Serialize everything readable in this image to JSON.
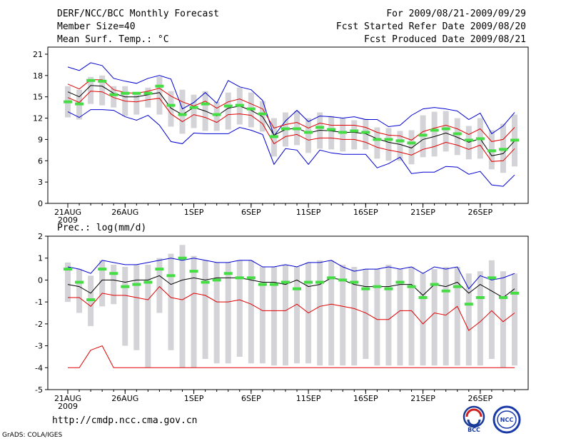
{
  "header": {
    "title": "DERF/NCC/BCC Monthly Forecast",
    "member_size": "Member Size=40",
    "variable": "Mean Surf. Temp.: °C",
    "period": "For 2009/08/21-2009/09/29",
    "fcst_started": "Fcst Started Refer Date 2009/08/20",
    "fcst_produced": "Fcst Produced Date 2009/08/21"
  },
  "footer": {
    "url": "http://cmdp.ncc.cma.gov.cn",
    "credit": "GrADS: COLA/IGES",
    "logo_bcc": "BCC",
    "logo_ncc": "NCC"
  },
  "colors": {
    "box": "#d4d4d8",
    "mean": "#000000",
    "upper": "#0000d0",
    "red": "#e00000",
    "green": "#44dd44"
  },
  "chart_data": [
    {
      "type": "line",
      "title": "Mean Surf. Temp.: °C",
      "x_tick_labels": [
        "21AUG",
        "26AUG",
        "1SEP",
        "6SEP",
        "11SEP",
        "16SEP",
        "21SEP",
        "26SEP"
      ],
      "x_tick_days": [
        1,
        6,
        12,
        17,
        22,
        27,
        32,
        37
      ],
      "x_sublabel": "2009",
      "ylim": [
        0,
        22
      ],
      "yticks": [
        "0",
        "3",
        "6",
        "9",
        "12",
        "15",
        "18",
        "21"
      ],
      "days": [
        1,
        2,
        3,
        4,
        5,
        6,
        7,
        8,
        9,
        10,
        11,
        12,
        13,
        14,
        15,
        16,
        17,
        18,
        19,
        20,
        21,
        22,
        23,
        24,
        25,
        26,
        27,
        28,
        29,
        30,
        31,
        32,
        33,
        34,
        35,
        36,
        37,
        38,
        39,
        40
      ],
      "series": [
        {
          "name": "max",
          "color_key": "upper",
          "values": [
            19.2,
            18.7,
            19.8,
            19.4,
            17.6,
            17.2,
            16.9,
            17.6,
            18.0,
            17.5,
            13.3,
            14.2,
            15.6,
            14.1,
            17.3,
            16.4,
            16.0,
            14.5,
            9.5,
            11.6,
            13.1,
            11.5,
            12.3,
            12.2,
            12.0,
            12.2,
            11.8,
            11.8,
            10.8,
            11.0,
            12.4,
            13.3,
            13.5,
            13.3,
            13.0,
            11.8,
            12.7,
            9.8,
            10.9,
            12.8
          ]
        },
        {
          "name": "upper_member",
          "color_key": "red",
          "values": [
            16.8,
            16.1,
            17.4,
            17.4,
            16.0,
            15.6,
            15.5,
            15.8,
            16.2,
            15.1,
            14.3,
            13.7,
            14.4,
            13.4,
            14.3,
            14.7,
            14.0,
            13.3,
            10.6,
            11.1,
            11.4,
            10.6,
            11.3,
            11.0,
            11.0,
            11.0,
            10.7,
            10.0,
            9.6,
            9.5,
            8.9,
            10.1,
            10.6,
            11.0,
            10.5,
            9.7,
            10.5,
            8.7,
            9.0,
            10.7
          ]
        },
        {
          "name": "ensemble_mean",
          "color_key": "mean",
          "values": [
            15.7,
            15.0,
            16.6,
            16.5,
            15.5,
            15.0,
            15.0,
            15.3,
            15.6,
            13.4,
            12.5,
            13.5,
            13.0,
            12.3,
            13.4,
            13.7,
            13.1,
            12.2,
            9.6,
            10.4,
            10.6,
            9.9,
            10.3,
            10.2,
            10.0,
            10.0,
            9.8,
            9.1,
            8.6,
            8.3,
            7.8,
            9.0,
            9.4,
            9.9,
            9.3,
            8.6,
            9.1,
            6.7,
            7.0,
            8.8
          ]
        },
        {
          "name": "lower_member",
          "color_key": "red",
          "values": [
            14.9,
            14.2,
            15.8,
            15.7,
            14.9,
            14.4,
            14.3,
            14.6,
            14.8,
            12.6,
            11.5,
            12.5,
            12.1,
            11.4,
            12.5,
            12.6,
            12.4,
            11.2,
            8.4,
            9.4,
            9.7,
            8.9,
            9.2,
            9.2,
            9.0,
            9.0,
            8.6,
            7.9,
            7.5,
            7.2,
            6.8,
            7.6,
            8.0,
            8.6,
            8.2,
            7.6,
            8.2,
            5.9,
            6.0,
            7.7
          ]
        },
        {
          "name": "min",
          "color_key": "upper",
          "values": [
            12.9,
            12.1,
            13.2,
            13.2,
            13.1,
            12.2,
            11.7,
            12.4,
            11.0,
            8.7,
            8.4,
            9.9,
            9.8,
            9.8,
            9.8,
            10.7,
            10.3,
            9.7,
            5.5,
            7.7,
            7.5,
            5.5,
            7.5,
            7.1,
            6.9,
            6.9,
            6.9,
            5.0,
            5.6,
            6.5,
            4.2,
            4.4,
            4.4,
            5.2,
            5.1,
            4.1,
            4.5,
            2.6,
            2.4,
            4.0
          ]
        }
      ],
      "boxes": {
        "median": [
          14.3,
          14.0,
          17.3,
          17.2,
          15.3,
          15.5,
          15.5,
          15.5,
          16.5,
          13.8,
          12.5,
          13.5,
          14.0,
          12.5,
          13.7,
          13.8,
          13.3,
          12.6,
          9.4,
          10.5,
          10.5,
          10.0,
          10.7,
          10.4,
          10.0,
          10.2,
          10.0,
          9.0,
          9.0,
          8.8,
          8.5,
          9.6,
          10.3,
          10.5,
          9.8,
          8.9,
          9.1,
          7.4,
          7.6,
          8.9
        ],
        "high": [
          16.5,
          16.0,
          17.8,
          18.0,
          16.5,
          16.5,
          15.6,
          16.3,
          17.8,
          15.8,
          16.0,
          15.3,
          15.8,
          14.3,
          15.6,
          16.3,
          15.6,
          14.4,
          12.0,
          12.8,
          13.0,
          12.0,
          12.8,
          12.3,
          12.0,
          11.7,
          11.9,
          10.7,
          10.6,
          10.2,
          10.3,
          12.4,
          12.9,
          13.0,
          12.0,
          10.9,
          12.0,
          10.3,
          11.2,
          12.5
        ],
        "low": [
          12.1,
          11.8,
          14.0,
          13.8,
          13.5,
          12.3,
          12.5,
          13.5,
          12.5,
          10.8,
          9.8,
          10.6,
          10.2,
          10.2,
          10.4,
          11.1,
          10.7,
          10.1,
          6.6,
          8.0,
          8.2,
          7.1,
          7.7,
          7.6,
          7.3,
          7.6,
          7.6,
          6.3,
          6.0,
          6.0,
          5.5,
          6.5,
          6.6,
          7.3,
          6.8,
          6.2,
          6.3,
          4.8,
          4.3,
          5.2
        ]
      }
    },
    {
      "type": "line",
      "title": "Prec.: log(mm/d)",
      "x_tick_labels": [
        "21AUG",
        "26AUG",
        "1SEP",
        "6SEP",
        "11SEP",
        "16SEP",
        "21SEP",
        "26SEP"
      ],
      "x_tick_days": [
        1,
        6,
        12,
        17,
        22,
        27,
        32,
        37
      ],
      "x_sublabel": "2009",
      "ylim": [
        -5,
        2
      ],
      "yticks": [
        "-5",
        "-4",
        "-3",
        "-2",
        "-1",
        "0",
        "1",
        "2"
      ],
      "days": [
        1,
        2,
        3,
        4,
        5,
        6,
        7,
        8,
        9,
        10,
        11,
        12,
        13,
        14,
        15,
        16,
        17,
        18,
        19,
        20,
        21,
        22,
        23,
        24,
        25,
        26,
        27,
        28,
        29,
        30,
        31,
        32,
        33,
        34,
        35,
        36,
        37,
        38,
        39,
        40
      ],
      "series": [
        {
          "name": "max",
          "color_key": "upper",
          "values": [
            0.6,
            0.5,
            0.3,
            0.9,
            0.8,
            0.7,
            0.7,
            0.8,
            0.9,
            1.0,
            0.9,
            1.0,
            0.9,
            0.8,
            0.8,
            0.9,
            0.9,
            0.6,
            0.6,
            0.7,
            0.6,
            0.8,
            0.8,
            0.9,
            0.6,
            0.4,
            0.5,
            0.5,
            0.6,
            0.5,
            0.6,
            0.3,
            0.6,
            0.5,
            0.6,
            -0.4,
            0.2,
            0.0,
            0.1,
            0.3
          ]
        },
        {
          "name": "ensemble_mean",
          "color_key": "mean",
          "values": [
            -0.2,
            -0.3,
            -0.6,
            0.0,
            0.0,
            -0.1,
            0.0,
            0.0,
            0.2,
            -0.2,
            0.0,
            0.1,
            0.0,
            0.1,
            0.1,
            0.1,
            0.0,
            -0.1,
            -0.1,
            -0.2,
            0.0,
            -0.3,
            -0.2,
            0.1,
            0.0,
            -0.2,
            -0.3,
            -0.3,
            -0.3,
            -0.2,
            -0.2,
            -0.7,
            -0.2,
            -0.3,
            -0.1,
            -0.6,
            -0.2,
            -0.5,
            -0.8,
            -0.4
          ]
        },
        {
          "name": "lower_member",
          "color_key": "red",
          "values": [
            -0.8,
            -0.8,
            -1.2,
            -0.6,
            -0.7,
            -0.7,
            -0.8,
            -0.9,
            -0.3,
            -0.8,
            -0.9,
            -0.6,
            -0.7,
            -1.0,
            -1.0,
            -0.9,
            -1.1,
            -1.4,
            -1.4,
            -1.4,
            -1.1,
            -1.5,
            -1.2,
            -1.1,
            -1.2,
            -1.3,
            -1.5,
            -1.8,
            -1.8,
            -1.4,
            -1.4,
            -2.0,
            -1.5,
            -1.6,
            -1.2,
            -2.3,
            -1.9,
            -1.4,
            -1.9,
            -1.5
          ]
        },
        {
          "name": "min",
          "color_key": "red",
          "values": [
            -4.0,
            -4.0,
            -3.2,
            -3.0,
            -4.0,
            -4.0,
            -4.0,
            -4.0,
            -4.0,
            -4.0,
            -4.0,
            -4.0,
            -4.0,
            -4.0,
            -4.0,
            -4.0,
            -4.0,
            -4.0,
            -4.0,
            -4.0,
            -4.0,
            -4.0,
            -4.0,
            -4.0,
            -4.0,
            -4.0,
            -4.0,
            -4.0,
            -4.0,
            -4.0,
            -4.0,
            -4.0,
            -4.0,
            -4.0,
            -4.0,
            -4.0,
            -4.0,
            -4.0,
            -4.0,
            -4.0
          ]
        }
      ],
      "boxes": {
        "median": [
          0.5,
          -0.1,
          -0.9,
          0.5,
          0.3,
          -0.3,
          -0.2,
          -0.1,
          0.5,
          0.2,
          1.0,
          0.4,
          -0.1,
          0.0,
          0.3,
          0.1,
          0.1,
          -0.2,
          -0.2,
          -0.1,
          -0.4,
          -0.1,
          -0.1,
          0.1,
          0.0,
          -0.1,
          -0.4,
          -0.3,
          -0.4,
          -0.1,
          -0.3,
          -0.8,
          -0.2,
          -0.5,
          -0.3,
          -1.1,
          -0.8,
          0.1,
          -0.8,
          -0.6
        ],
        "high": [
          0.8,
          0.5,
          0.2,
          0.9,
          0.7,
          0.6,
          0.7,
          0.7,
          1.0,
          1.2,
          1.6,
          1.1,
          0.9,
          0.8,
          0.8,
          0.9,
          0.9,
          0.6,
          0.6,
          0.7,
          0.6,
          0.8,
          0.9,
          0.9,
          0.7,
          0.6,
          0.5,
          0.5,
          0.7,
          0.5,
          0.6,
          0.3,
          0.5,
          0.6,
          0.6,
          0.3,
          0.4,
          0.9,
          0.4,
          0.3
        ],
        "low": [
          -1.0,
          -1.5,
          -2.1,
          -1.2,
          -1.1,
          -3.0,
          -3.2,
          -4.0,
          -1.5,
          -3.2,
          -4.0,
          -4.0,
          -3.6,
          -3.8,
          -3.8,
          -3.5,
          -3.8,
          -3.8,
          -3.9,
          -3.9,
          -3.8,
          -3.8,
          -3.9,
          -3.9,
          -3.9,
          -3.9,
          -3.6,
          -3.9,
          -3.9,
          -3.9,
          -3.9,
          -3.9,
          -3.9,
          -3.9,
          -3.9,
          -3.9,
          -3.9,
          -3.6,
          -4.0,
          -3.9
        ]
      }
    }
  ]
}
